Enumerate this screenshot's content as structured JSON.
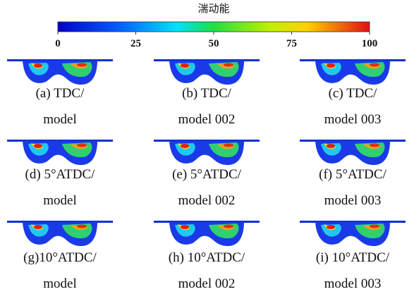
{
  "colorbar": {
    "title": "湍动能",
    "range": [
      0,
      100
    ],
    "ticks": [
      0,
      25,
      50,
      75,
      100
    ]
  },
  "panels": [
    {
      "caption": [
        "(a) TDC/",
        "model"
      ]
    },
    {
      "caption": [
        "(b) TDC/",
        "model 002"
      ]
    },
    {
      "caption": [
        "(c) TDC/",
        "model 003"
      ]
    },
    {
      "caption": [
        "(d) 5°ATDC/",
        "model"
      ]
    },
    {
      "caption": [
        "(e) 5°ATDC/",
        "model 002"
      ]
    },
    {
      "caption": [
        "(f) 5°ATDC/",
        "model 003"
      ]
    },
    {
      "caption": [
        "(g)10°ATDC/",
        "model"
      ]
    },
    {
      "caption": [
        "(h) 10°ATDC/",
        "model 002"
      ]
    },
    {
      "caption": [
        "(i) 10°ATDC/",
        "model 003"
      ]
    }
  ]
}
